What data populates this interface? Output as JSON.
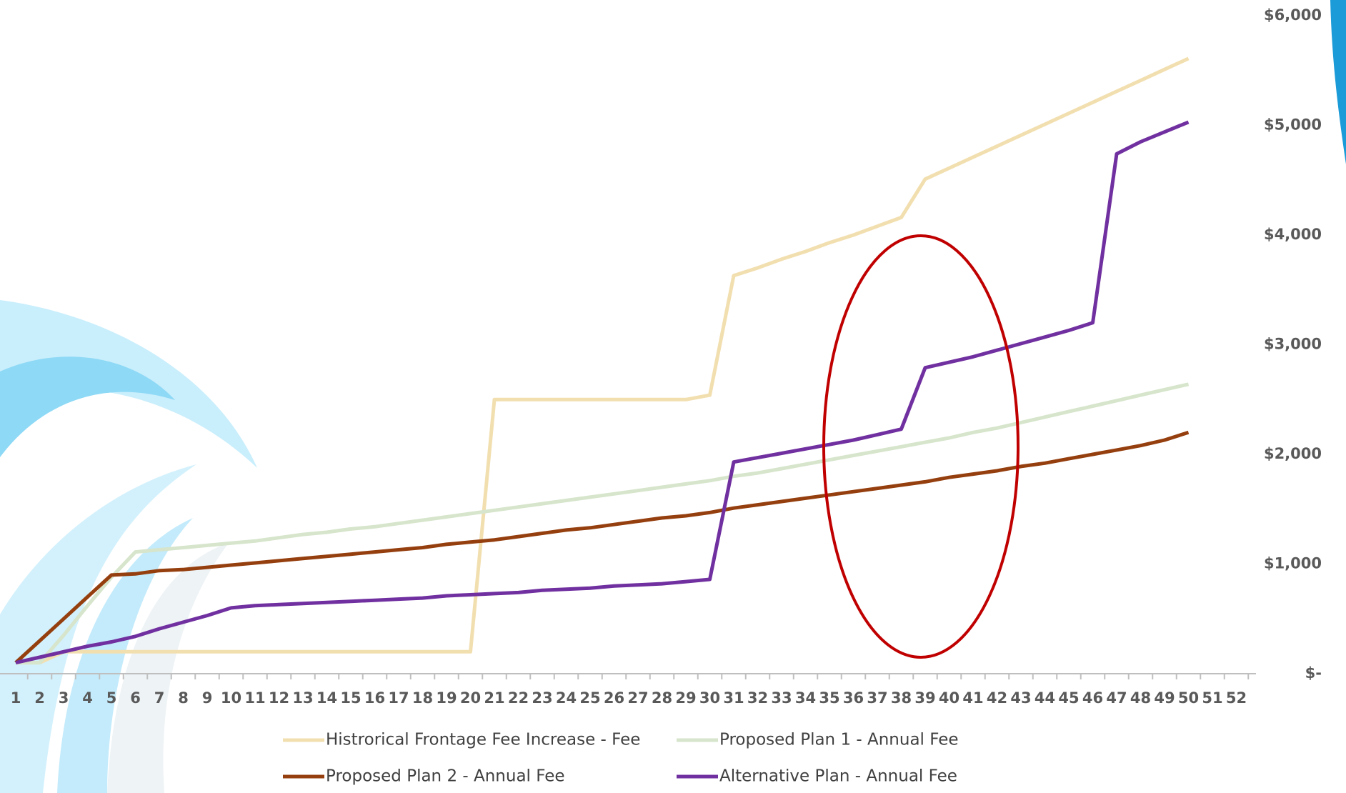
{
  "chart_data": {
    "type": "line",
    "categories": [
      "1",
      "2",
      "3",
      "4",
      "5",
      "6",
      "7",
      "8",
      "9",
      "10",
      "11",
      "12",
      "13",
      "14",
      "15",
      "16",
      "17",
      "18",
      "19",
      "20",
      "21",
      "22",
      "23",
      "24",
      "25",
      "26",
      "27",
      "28",
      "29",
      "30",
      "31",
      "32",
      "33",
      "34",
      "35",
      "36",
      "37",
      "38",
      "39",
      "40",
      "41",
      "42",
      "43",
      "44",
      "45",
      "46",
      "47",
      "48",
      "49",
      "50",
      "51",
      "52"
    ],
    "series": [
      {
        "name": "Histrorical Frontage Fee Increase - Fee",
        "color": "#f2dfb0",
        "values": [
          100,
          100,
          200,
          200,
          200,
          200,
          200,
          200,
          200,
          200,
          200,
          200,
          200,
          200,
          200,
          200,
          200,
          200,
          200,
          200,
          2500,
          2500,
          2500,
          2500,
          2500,
          2500,
          2500,
          2500,
          2500,
          2540,
          3630,
          3700,
          3780,
          3850,
          3930,
          4000,
          4080,
          4160,
          4510,
          4610,
          4710,
          4810,
          4910,
          5010,
          5110,
          5210,
          5310,
          5410,
          5510,
          5610,
          null,
          null
        ]
      },
      {
        "name": "Proposed Plan 1 - Annual Fee",
        "color": "#d6e5cb",
        "values": [
          100,
          100,
          350,
          620,
          880,
          1110,
          1130,
          1150,
          1170,
          1190,
          1210,
          1240,
          1270,
          1290,
          1320,
          1340,
          1370,
          1400,
          1430,
          1460,
          1490,
          1520,
          1550,
          1580,
          1610,
          1640,
          1670,
          1700,
          1730,
          1760,
          1800,
          1830,
          1870,
          1910,
          1950,
          1990,
          2030,
          2070,
          2110,
          2150,
          2200,
          2240,
          2290,
          2340,
          2390,
          2440,
          2490,
          2540,
          2590,
          2640,
          null,
          null
        ]
      },
      {
        "name": "Proposed Plan 2 - Annual Fee",
        "color": "#953f0f",
        "values": [
          100,
          300,
          500,
          700,
          900,
          910,
          940,
          950,
          970,
          990,
          1010,
          1030,
          1050,
          1070,
          1090,
          1110,
          1130,
          1150,
          1180,
          1200,
          1220,
          1250,
          1280,
          1310,
          1330,
          1360,
          1390,
          1420,
          1440,
          1470,
          1510,
          1540,
          1570,
          1600,
          1630,
          1660,
          1690,
          1720,
          1750,
          1790,
          1820,
          1850,
          1890,
          1920,
          1960,
          2000,
          2040,
          2080,
          2130,
          2200,
          null,
          null
        ]
      },
      {
        "name": "Alternative Plan - Annual Fee",
        "color": "#7030a0",
        "values": [
          100,
          150,
          200,
          250,
          290,
          340,
          410,
          470,
          530,
          600,
          620,
          630,
          640,
          650,
          660,
          670,
          680,
          690,
          710,
          720,
          730,
          740,
          760,
          770,
          780,
          800,
          810,
          820,
          840,
          860,
          1930,
          1970,
          2010,
          2050,
          2090,
          2130,
          2180,
          2230,
          2790,
          2840,
          2890,
          2950,
          3010,
          3070,
          3130,
          3200,
          4740,
          4850,
          4940,
          5030,
          null,
          null
        ]
      }
    ],
    "ylim": [
      0,
      6000
    ],
    "yticks": [
      {
        "value": 0,
        "label": "$-"
      },
      {
        "value": 1000,
        "label": "$1,000"
      },
      {
        "value": 2000,
        "label": "$2,000"
      },
      {
        "value": 3000,
        "label": "$3,000"
      },
      {
        "value": 4000,
        "label": "$4,000"
      },
      {
        "value": 5000,
        "label": "$5,000"
      },
      {
        "value": 6000,
        "label": "$6,000"
      }
    ],
    "y_axis_side": "right",
    "grid": false,
    "legend": "bottom"
  }
}
